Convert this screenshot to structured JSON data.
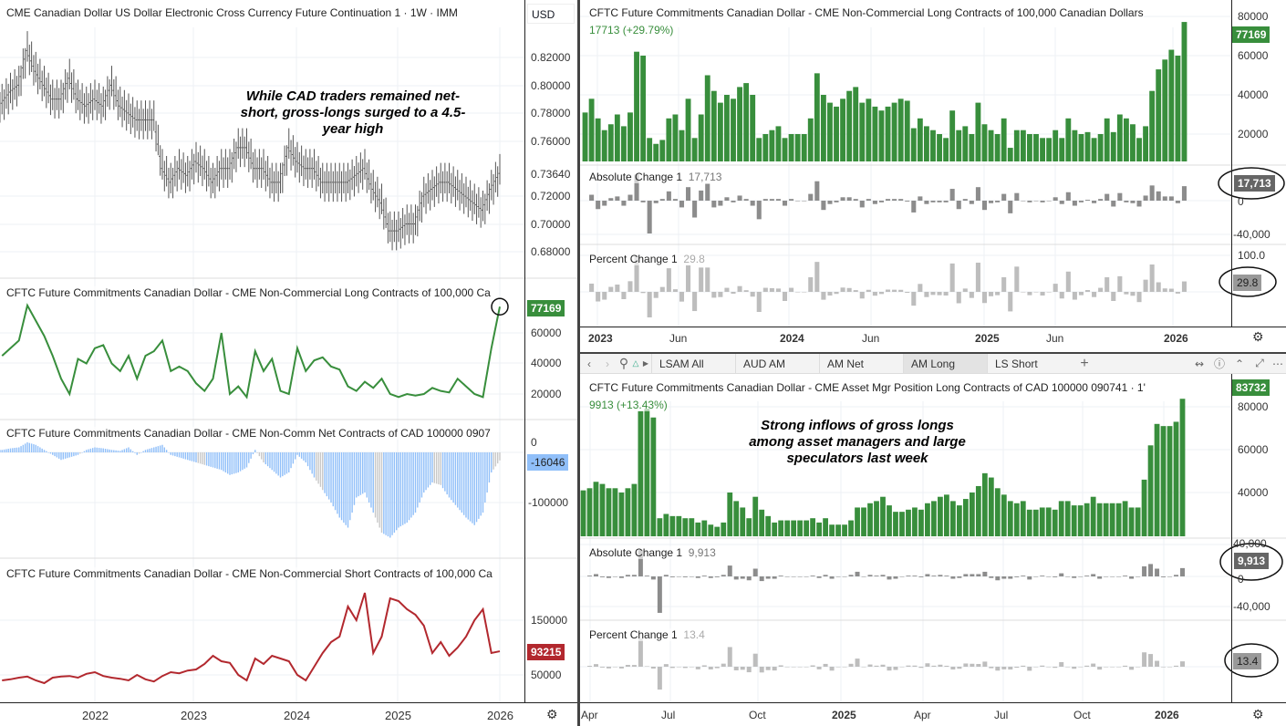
{
  "left": {
    "x": [
      "2021-02",
      "2021-03",
      "2021-04",
      "2021-05",
      "2021-06",
      "2021-07",
      "2021-08",
      "2021-09",
      "2021-10",
      "2021-11",
      "2021-12",
      "2022-01",
      "2022-02",
      "2022-03",
      "2022-04",
      "2022-05",
      "2022-06",
      "2022-07",
      "2022-08",
      "2022-09",
      "2022-10",
      "2022-11",
      "2022-12",
      "2023-01",
      "2023-02",
      "2023-03",
      "2023-04",
      "2023-05",
      "2023-06",
      "2023-07",
      "2023-08",
      "2023-09",
      "2023-10",
      "2023-11",
      "2023-12",
      "2024-01",
      "2024-02",
      "2024-03",
      "2024-04",
      "2024-05",
      "2024-06",
      "2024-07",
      "2024-08",
      "2024-09",
      "2024-10",
      "2024-11",
      "2024-12",
      "2025-01",
      "2025-02",
      "2025-03",
      "2025-04",
      "2025-05",
      "2025-06",
      "2025-07",
      "2025-08",
      "2025-09",
      "2025-10",
      "2025-11",
      "2025-12",
      "2026-01"
    ],
    "x_ticks": [
      "2022",
      "2023",
      "2024",
      "2025",
      "2026"
    ],
    "currency_label": "USD"
  },
  "right_top": {
    "x_ticks": [
      "2023",
      "Jun",
      "2024",
      "Jun",
      "2025",
      "Jun",
      "2026"
    ],
    "value_line": "17713 (+29.79%)",
    "abs_title": "Absolute Change 1",
    "abs_value": "17,713",
    "pct_title": "Percent Change 1",
    "pct_value": "29.8",
    "abs_ticks": [
      "0",
      "-40,000"
    ],
    "pct_ticks": [
      "100.0"
    ]
  },
  "toolbar": {
    "tabs": [
      {
        "label": "LSAM All",
        "active": false
      },
      {
        "label": "AUD AM",
        "active": false
      },
      {
        "label": "AM Net",
        "active": false
      },
      {
        "label": "AM Long",
        "active": true
      },
      {
        "label": "LS Short",
        "active": false
      }
    ],
    "add_label": "+",
    "icons": [
      "chevron-left",
      "chevron-right",
      "search",
      "lock",
      "caret-right",
      "link",
      "help",
      "collapse",
      "expand",
      "more"
    ]
  },
  "right_bottom": {
    "x_ticks": [
      "Apr",
      "Jul",
      "Oct",
      "2025",
      "Apr",
      "Jul",
      "Oct",
      "2026"
    ],
    "value_line": "9913 (+13.43%)",
    "abs_title": "Absolute Change 1",
    "abs_value": "9,913",
    "pct_title": "Percent Change 1",
    "pct_value": "13.4",
    "abs_ticks": [
      "40,000",
      "0",
      "-40,000"
    ]
  },
  "annotations": {
    "top": "While CAD traders remained net-short, gross-longs surged to a 4.5-year high",
    "bottom": "Strong inflows of gross longs among asset managers and large speculators last week"
  },
  "colors": {
    "long": "#388e3c",
    "short": "#b2282e",
    "net": "#90bff9",
    "change": "#8c8c8c",
    "pct": "#bdbdbd",
    "price": "#555555"
  },
  "chart_data": [
    {
      "id": "price",
      "type": "ohlc",
      "title": "CME Canadian Dollar US Dollar Electronic Cross Currency Future Continuation 1 · 1W · IMM",
      "ylim": [
        0.66,
        0.845
      ],
      "y_ticks": [
        "0.82000",
        "0.80000",
        "0.78000",
        "0.76000",
        "0.73640",
        "0.72000",
        "0.70000",
        "0.68000"
      ],
      "last": "0.73640",
      "values": [
        0.787,
        0.795,
        0.8,
        0.825,
        0.81,
        0.8,
        0.79,
        0.79,
        0.805,
        0.79,
        0.785,
        0.79,
        0.785,
        0.8,
        0.785,
        0.78,
        0.775,
        0.775,
        0.775,
        0.74,
        0.73,
        0.74,
        0.735,
        0.745,
        0.74,
        0.73,
        0.74,
        0.74,
        0.755,
        0.755,
        0.74,
        0.74,
        0.73,
        0.73,
        0.755,
        0.745,
        0.74,
        0.74,
        0.73,
        0.73,
        0.73,
        0.73,
        0.735,
        0.74,
        0.725,
        0.715,
        0.695,
        0.695,
        0.7,
        0.7,
        0.72,
        0.725,
        0.73,
        0.73,
        0.725,
        0.72,
        0.715,
        0.71,
        0.725,
        0.7364
      ]
    },
    {
      "id": "nc-long",
      "type": "line",
      "title": "CFTC Future Commitments Canadian Dollar - CME Non-Commercial Long Contracts of 100,000 Ca",
      "y_ticks": [
        "60000",
        "40000",
        "20000"
      ],
      "last": "77169",
      "values": [
        45000,
        50000,
        55000,
        78000,
        68000,
        58000,
        45000,
        30000,
        20000,
        43000,
        40000,
        50000,
        52000,
        40000,
        35000,
        45000,
        30000,
        45000,
        48000,
        55000,
        35000,
        38000,
        35000,
        27000,
        22000,
        30000,
        60000,
        20000,
        25000,
        18000,
        48000,
        35000,
        43000,
        22000,
        20000,
        50000,
        35000,
        42000,
        44000,
        38000,
        36000,
        25000,
        22000,
        28000,
        24000,
        30000,
        20000,
        18000,
        20000,
        19000,
        20000,
        24000,
        22000,
        21000,
        30000,
        25000,
        20000,
        18000,
        50000,
        77169
      ]
    },
    {
      "id": "nc-net",
      "type": "bar",
      "title": "CFTC Future Commitments Canadian Dollar - CME Non-Comm Net Contracts of CAD 100000 0907",
      "y_ticks": [
        "0",
        "-100000"
      ],
      "last": "-16046",
      "values": [
        5000,
        8000,
        10000,
        20000,
        15000,
        5000,
        -5000,
        -15000,
        -10000,
        -5000,
        5000,
        10000,
        8000,
        5000,
        3000,
        10000,
        -5000,
        5000,
        10000,
        15000,
        -5000,
        -10000,
        -15000,
        -20000,
        -25000,
        -30000,
        -35000,
        -45000,
        -40000,
        -30000,
        5000,
        -20000,
        -35000,
        -50000,
        -40000,
        -5000,
        -20000,
        -50000,
        -75000,
        -100000,
        -130000,
        -150000,
        -90000,
        -80000,
        -120000,
        -160000,
        -170000,
        -150000,
        -140000,
        -120000,
        -80000,
        -60000,
        -65000,
        -90000,
        -110000,
        -130000,
        -145000,
        -120000,
        -40000,
        -16046
      ]
    },
    {
      "id": "nc-short",
      "type": "line",
      "title": "CFTC Future Commitments Canadian Dollar - CME Non-Commercial Short Contracts of 100,000 Ca",
      "y_ticks": [
        "150000",
        "50000"
      ],
      "last": "93215",
      "values": [
        40000,
        42000,
        45000,
        47000,
        40000,
        35000,
        45000,
        47000,
        48000,
        45000,
        52000,
        55000,
        48000,
        45000,
        43000,
        40000,
        50000,
        42000,
        38000,
        48000,
        55000,
        53000,
        58000,
        60000,
        70000,
        85000,
        75000,
        72000,
        50000,
        40000,
        80000,
        70000,
        85000,
        80000,
        75000,
        50000,
        40000,
        65000,
        90000,
        110000,
        120000,
        175000,
        150000,
        200000,
        90000,
        120000,
        190000,
        185000,
        170000,
        160000,
        140000,
        90000,
        110000,
        85000,
        100000,
        120000,
        150000,
        170000,
        90000,
        93215
      ]
    },
    {
      "id": "nc-long-weekly",
      "type": "bar",
      "title": "CFTC Future Commitments Canadian Dollar - CME Non-Commercial Long Contracts of 100,000 Canadian Dollars",
      "x_range": [
        "2022-11",
        "2026-02"
      ],
      "y_ticks": [
        "80000",
        "60000",
        "40000",
        "20000"
      ],
      "last": "77169",
      "values": [
        31000,
        38000,
        28000,
        22000,
        25000,
        30000,
        24000,
        31000,
        62000,
        60000,
        18000,
        15000,
        17000,
        28000,
        30000,
        22000,
        38000,
        18000,
        30000,
        50000,
        42000,
        36000,
        40000,
        38000,
        44000,
        46000,
        40000,
        18000,
        20000,
        22000,
        24000,
        18000,
        20000,
        20000,
        20000,
        28000,
        51000,
        40000,
        36000,
        34000,
        38000,
        42000,
        44000,
        36000,
        38000,
        34000,
        32000,
        34000,
        36000,
        38000,
        37000,
        23000,
        28000,
        24000,
        22000,
        20000,
        18000,
        32000,
        22000,
        24000,
        20000,
        36000,
        25000,
        22000,
        20000,
        28000,
        13000,
        22000,
        22000,
        20000,
        20000,
        18000,
        18000,
        22000,
        18000,
        28000,
        22000,
        20000,
        21000,
        18000,
        20000,
        28000,
        21000,
        30000,
        28000,
        25000,
        18000,
        24000,
        42000,
        53000,
        58000,
        63000,
        60000,
        77169
      ]
    },
    {
      "id": "am-long-weekly",
      "type": "bar",
      "title": "CFTC Future Commitments Canadian Dollar - CME Asset Mgr Position Long Contracts of CAD 100000 090741 · 1'",
      "x_range": [
        "2024-04",
        "2026-02"
      ],
      "y_ticks": [
        "80000",
        "60000",
        "40000"
      ],
      "last": "83732",
      "values": [
        41000,
        42000,
        45000,
        44000,
        42000,
        42000,
        40000,
        42000,
        44000,
        78000,
        79000,
        75000,
        28000,
        30000,
        29000,
        29000,
        28000,
        28000,
        26000,
        27000,
        25000,
        24000,
        26000,
        40000,
        36000,
        33000,
        28000,
        38000,
        32000,
        29000,
        26000,
        27000,
        27000,
        27000,
        27000,
        27000,
        28000,
        26000,
        28000,
        25000,
        25000,
        25000,
        27000,
        33000,
        33000,
        35000,
        36000,
        38000,
        34000,
        31000,
        31000,
        32000,
        33000,
        32000,
        35000,
        36000,
        38000,
        39000,
        36000,
        34000,
        37000,
        40000,
        43000,
        49000,
        47000,
        42000,
        39000,
        36000,
        35000,
        36000,
        32000,
        32000,
        33000,
        33000,
        32000,
        36000,
        36000,
        34000,
        34000,
        35000,
        38000,
        35000,
        35000,
        35000,
        35000,
        36000,
        33000,
        33000,
        46000,
        62000,
        72000,
        71000,
        71000,
        73000,
        83732
      ]
    }
  ]
}
